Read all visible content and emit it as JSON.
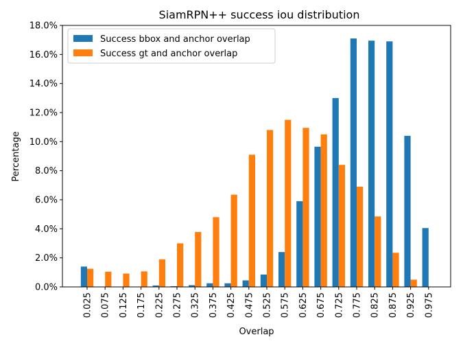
{
  "chart_data": {
    "type": "bar",
    "title": "SiamRPN++ success iou distribution",
    "xlabel": "Overlap",
    "ylabel": "Percentage",
    "ylim": [
      0,
      18
    ],
    "yticks": [
      "0.0%",
      "2.0%",
      "4.0%",
      "6.0%",
      "8.0%",
      "10.0%",
      "12.0%",
      "14.0%",
      "16.0%",
      "18.0%"
    ],
    "categories": [
      "0.025",
      "0.075",
      "0.125",
      "0.175",
      "0.225",
      "0.275",
      "0.325",
      "0.375",
      "0.425",
      "0.475",
      "0.525",
      "0.575",
      "0.625",
      "0.675",
      "0.725",
      "0.775",
      "0.825",
      "0.875",
      "0.925",
      "0.975"
    ],
    "series": [
      {
        "name": "Success bbox and anchor overlap",
        "color": "#1f77b4",
        "values": [
          1.4,
          0,
          0,
          0,
          0.1,
          0.05,
          0.12,
          0.25,
          0.25,
          0.45,
          0.85,
          2.4,
          5.9,
          9.65,
          13.0,
          17.1,
          16.95,
          16.9,
          10.4,
          4.05
        ]
      },
      {
        "name": "Success gt and anchor overlap",
        "color": "#ff7f0e",
        "values": [
          1.25,
          1.05,
          0.92,
          1.07,
          1.9,
          3.0,
          3.78,
          4.8,
          6.35,
          9.1,
          10.8,
          11.5,
          10.95,
          10.5,
          8.4,
          6.9,
          4.85,
          2.35,
          0.5,
          0
        ]
      }
    ],
    "legend_position": "top-left",
    "grid": false
  }
}
